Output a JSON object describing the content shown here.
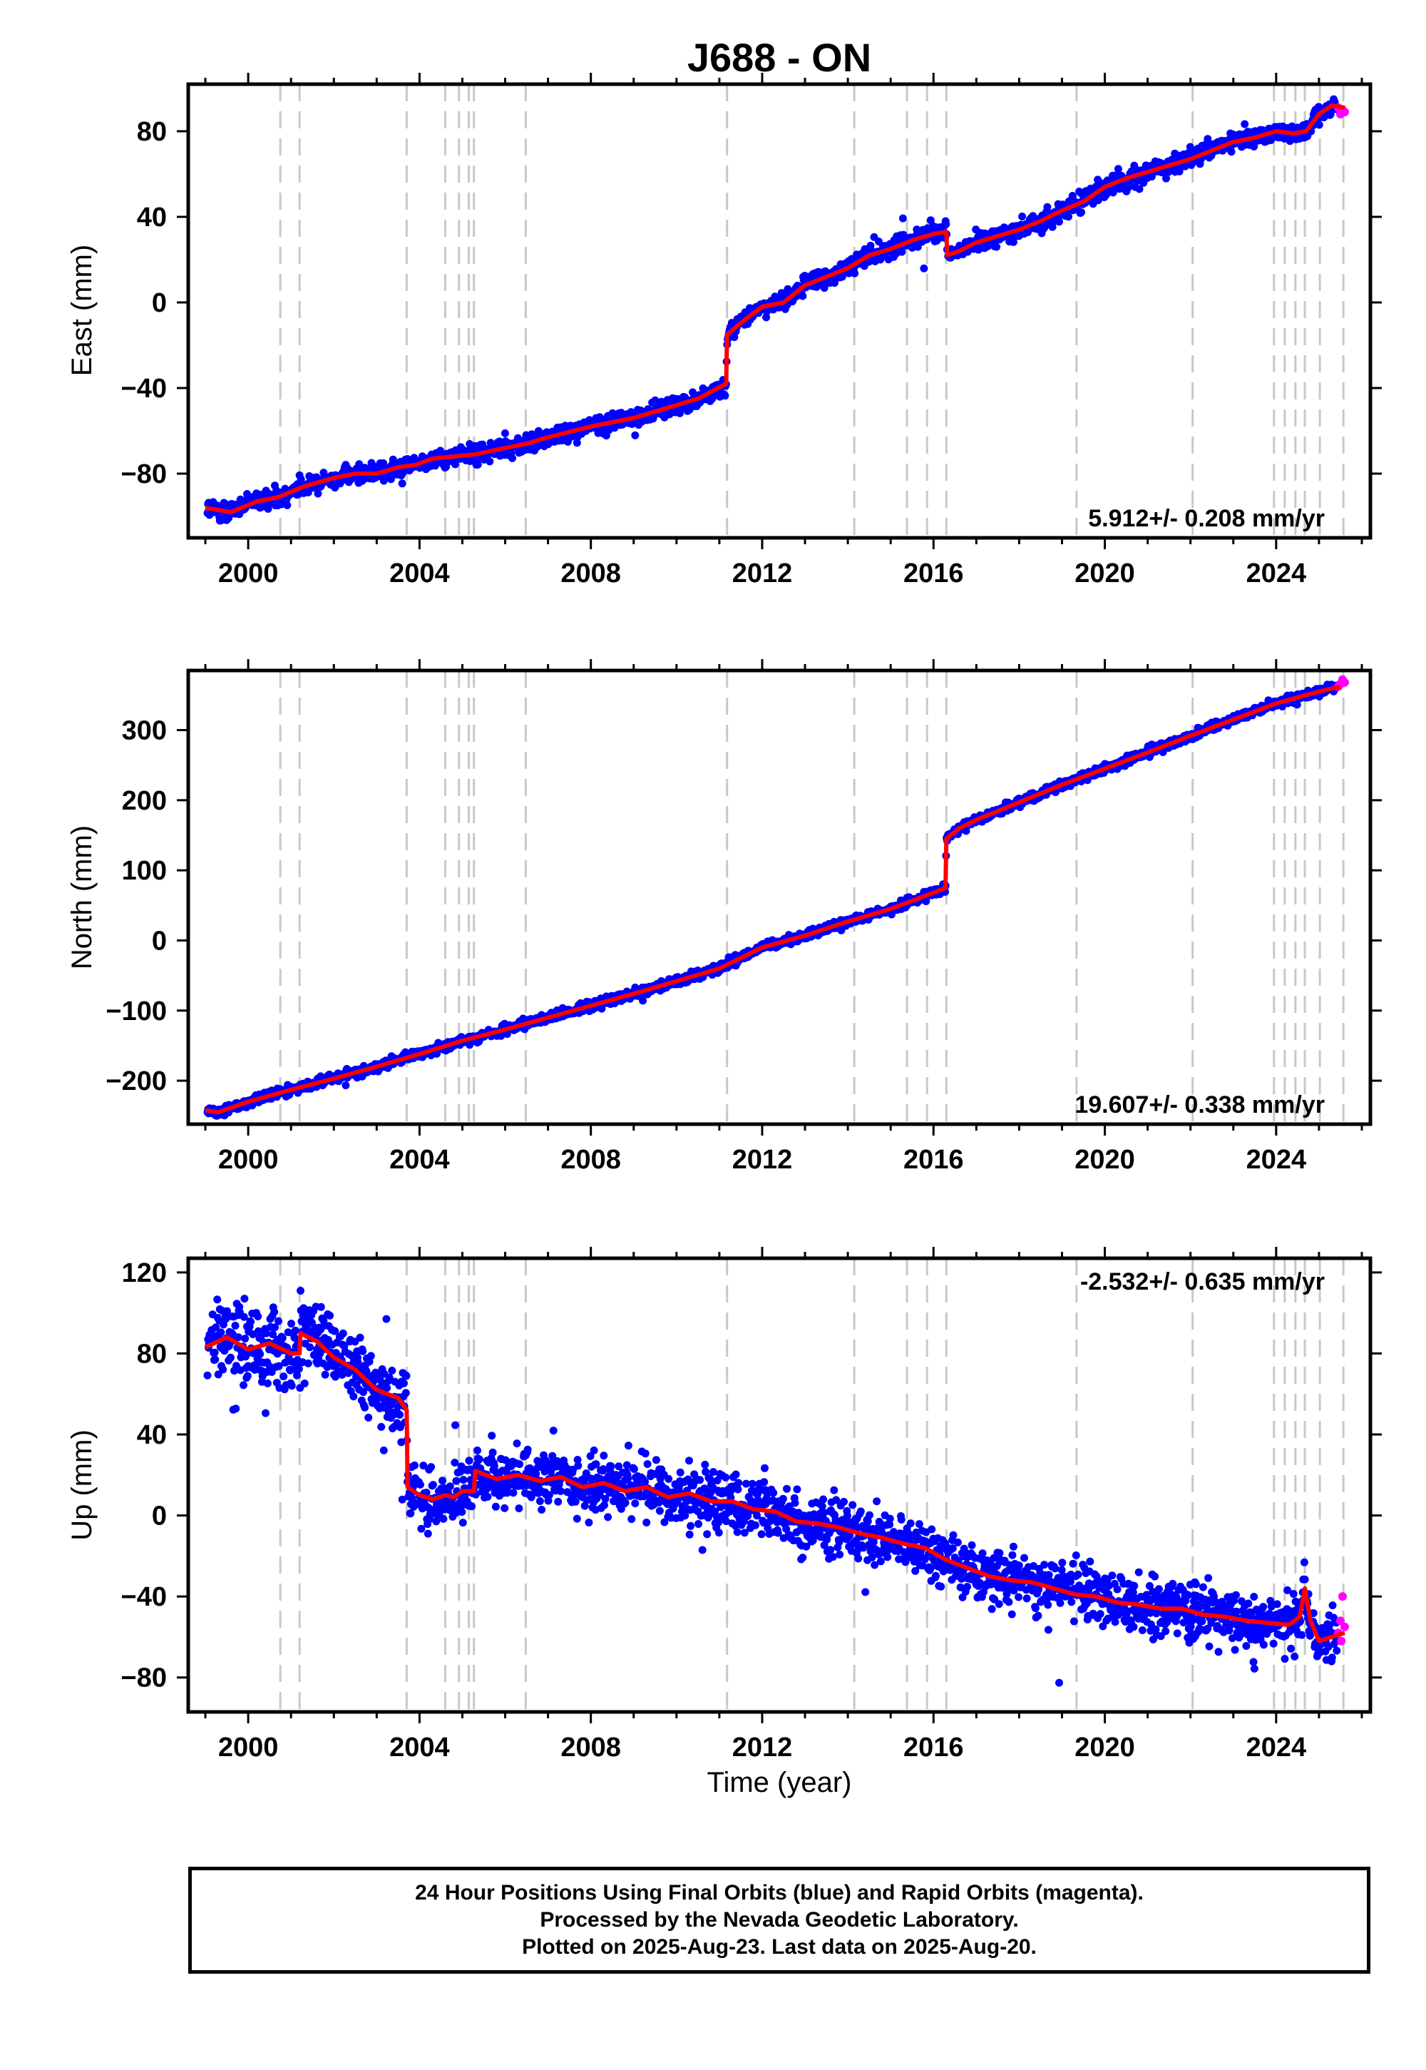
{
  "title": "J688 - ON",
  "xlabel": "Time (year)",
  "colors": {
    "final": "#0000ff",
    "rapid": "#ff00ff",
    "model": "#ff0000",
    "events": "#c8c8c8"
  },
  "event_years": [
    2000.75,
    2001.2,
    2003.7,
    2004.6,
    2004.92,
    2005.15,
    2005.27,
    2006.48,
    2011.18,
    2014.15,
    2015.38,
    2015.85,
    2016.3,
    2019.34,
    2022.05,
    2023.95,
    2024.2,
    2024.45,
    2024.67,
    2025.02,
    2025.57
  ],
  "chart_data": [
    {
      "type": "scatter",
      "name": "east",
      "ylabel": "East (mm)",
      "xlim": [
        1998.6,
        2026.2
      ],
      "ylim": [
        -110,
        102
      ],
      "xticks": [
        2000,
        2004,
        2008,
        2012,
        2016,
        2020,
        2024
      ],
      "yticks": [
        -80,
        -40,
        0,
        40,
        80
      ],
      "annotation": "5.912+/- 0.208 mm/yr",
      "model_line": [
        [
          1999.0,
          -96
        ],
        [
          1999.6,
          -98
        ],
        [
          2000.2,
          -93
        ],
        [
          2000.7,
          -91
        ],
        [
          2001.3,
          -86
        ],
        [
          2002.0,
          -82
        ],
        [
          2002.5,
          -80
        ],
        [
          2003.0,
          -80
        ],
        [
          2003.5,
          -77
        ],
        [
          2003.9,
          -76
        ],
        [
          2004.3,
          -73
        ],
        [
          2004.8,
          -72
        ],
        [
          2005.3,
          -71
        ],
        [
          2006.0,
          -68
        ],
        [
          2006.5,
          -66
        ],
        [
          2007.0,
          -63
        ],
        [
          2008.0,
          -58
        ],
        [
          2009.0,
          -54
        ],
        [
          2010.0,
          -48
        ],
        [
          2010.5,
          -45
        ],
        [
          2011.16,
          -38
        ],
        [
          2011.18,
          -15
        ],
        [
          2011.6,
          -8
        ],
        [
          2012.0,
          -2
        ],
        [
          2012.5,
          0
        ],
        [
          2013.0,
          8
        ],
        [
          2013.5,
          12
        ],
        [
          2014.0,
          16
        ],
        [
          2014.5,
          22
        ],
        [
          2015.0,
          25
        ],
        [
          2015.5,
          29
        ],
        [
          2016.0,
          32
        ],
        [
          2016.3,
          33
        ],
        [
          2016.32,
          22
        ],
        [
          2016.6,
          24
        ],
        [
          2017.0,
          28
        ],
        [
          2017.5,
          31
        ],
        [
          2018.0,
          34
        ],
        [
          2018.5,
          38
        ],
        [
          2019.0,
          43
        ],
        [
          2019.5,
          47
        ],
        [
          2020.0,
          54
        ],
        [
          2020.5,
          58
        ],
        [
          2021.0,
          61
        ],
        [
          2021.5,
          64
        ],
        [
          2022.0,
          67
        ],
        [
          2022.5,
          71
        ],
        [
          2023.0,
          75
        ],
        [
          2023.5,
          77
        ],
        [
          2024.0,
          80
        ],
        [
          2024.4,
          79
        ],
        [
          2024.7,
          80
        ],
        [
          2025.0,
          88
        ],
        [
          2025.3,
          92
        ],
        [
          2025.6,
          91
        ]
      ],
      "rapid_points": [
        [
          2025.45,
          91
        ],
        [
          2025.5,
          88
        ],
        [
          2025.55,
          90
        ],
        [
          2025.6,
          89
        ]
      ]
    },
    {
      "type": "scatter",
      "name": "north",
      "ylabel": "North (mm)",
      "xlim": [
        1998.6,
        2026.2
      ],
      "ylim": [
        -262,
        385
      ],
      "xticks": [
        2000,
        2004,
        2008,
        2012,
        2016,
        2020,
        2024
      ],
      "yticks": [
        -200,
        -100,
        0,
        100,
        200,
        300
      ],
      "annotation": "19.607+/- 0.338 mm/yr",
      "model_line": [
        [
          1999.0,
          -242
        ],
        [
          1999.3,
          -245
        ],
        [
          2000.0,
          -230
        ],
        [
          2001.0,
          -213
        ],
        [
          2002.0,
          -197
        ],
        [
          2003.0,
          -180
        ],
        [
          2004.0,
          -162
        ],
        [
          2005.0,
          -143
        ],
        [
          2006.0,
          -127
        ],
        [
          2007.0,
          -110
        ],
        [
          2008.0,
          -93
        ],
        [
          2009.0,
          -76
        ],
        [
          2010.0,
          -58
        ],
        [
          2011.0,
          -40
        ],
        [
          2012.0,
          -10
        ],
        [
          2013.0,
          7
        ],
        [
          2014.0,
          27
        ],
        [
          2015.0,
          45
        ],
        [
          2016.0,
          68
        ],
        [
          2016.28,
          75
        ],
        [
          2016.3,
          145
        ],
        [
          2016.6,
          160
        ],
        [
          2017.0,
          172
        ],
        [
          2018.0,
          197
        ],
        [
          2019.0,
          222
        ],
        [
          2020.0,
          245
        ],
        [
          2021.0,
          268
        ],
        [
          2022.0,
          292
        ],
        [
          2023.0,
          315
        ],
        [
          2024.0,
          338
        ],
        [
          2025.0,
          355
        ],
        [
          2025.5,
          362
        ]
      ],
      "rapid_points": [
        [
          2025.45,
          362
        ],
        [
          2025.5,
          366
        ],
        [
          2025.55,
          372
        ],
        [
          2025.6,
          368
        ]
      ]
    },
    {
      "type": "scatter",
      "name": "up",
      "ylabel": "Up (mm)",
      "xlim": [
        1998.6,
        2026.2
      ],
      "ylim": [
        -97,
        127
      ],
      "xticks": [
        2000,
        2004,
        2008,
        2012,
        2016,
        2020,
        2024
      ],
      "yticks": [
        -80,
        -40,
        0,
        40,
        80,
        120
      ],
      "annotation": "-2.532+/- 0.635 mm/yr",
      "model_line": [
        [
          1999.0,
          83
        ],
        [
          1999.5,
          88
        ],
        [
          2000.0,
          82
        ],
        [
          2000.5,
          85
        ],
        [
          2001.0,
          80
        ],
        [
          2001.2,
          80
        ],
        [
          2001.22,
          90
        ],
        [
          2001.6,
          86
        ],
        [
          2002.0,
          78
        ],
        [
          2002.5,
          72
        ],
        [
          2003.0,
          62
        ],
        [
          2003.5,
          58
        ],
        [
          2003.7,
          52
        ],
        [
          2003.72,
          14
        ],
        [
          2004.0,
          10
        ],
        [
          2004.3,
          8
        ],
        [
          2004.6,
          10
        ],
        [
          2004.8,
          9
        ],
        [
          2005.0,
          12
        ],
        [
          2005.27,
          12
        ],
        [
          2005.3,
          22
        ],
        [
          2005.8,
          18
        ],
        [
          2006.3,
          20
        ],
        [
          2006.8,
          17
        ],
        [
          2007.3,
          19
        ],
        [
          2007.8,
          14
        ],
        [
          2008.3,
          16
        ],
        [
          2008.8,
          12
        ],
        [
          2009.3,
          14
        ],
        [
          2009.8,
          9
        ],
        [
          2010.3,
          11
        ],
        [
          2010.8,
          7
        ],
        [
          2011.3,
          7
        ],
        [
          2011.8,
          3
        ],
        [
          2012.3,
          2
        ],
        [
          2012.8,
          -3
        ],
        [
          2013.3,
          -4
        ],
        [
          2013.8,
          -6
        ],
        [
          2014.3,
          -9
        ],
        [
          2014.8,
          -11
        ],
        [
          2015.3,
          -14
        ],
        [
          2015.8,
          -16
        ],
        [
          2016.3,
          -22
        ],
        [
          2016.8,
          -26
        ],
        [
          2017.3,
          -30
        ],
        [
          2017.8,
          -32
        ],
        [
          2018.3,
          -33
        ],
        [
          2018.8,
          -36
        ],
        [
          2019.3,
          -39
        ],
        [
          2019.8,
          -40
        ],
        [
          2020.3,
          -43
        ],
        [
          2020.8,
          -44
        ],
        [
          2021.3,
          -46
        ],
        [
          2021.8,
          -46
        ],
        [
          2022.3,
          -49
        ],
        [
          2022.8,
          -50
        ],
        [
          2023.3,
          -52
        ],
        [
          2023.8,
          -53
        ],
        [
          2024.3,
          -54
        ],
        [
          2024.55,
          -50
        ],
        [
          2024.67,
          -36
        ],
        [
          2024.8,
          -52
        ],
        [
          2025.0,
          -62
        ],
        [
          2025.3,
          -60
        ],
        [
          2025.6,
          -58
        ]
      ],
      "rapid_points": [
        [
          2025.45,
          -58
        ],
        [
          2025.5,
          -52
        ],
        [
          2025.52,
          -62
        ],
        [
          2025.55,
          -40
        ],
        [
          2025.6,
          -55
        ]
      ]
    }
  ],
  "footer": {
    "line1": "24 Hour Positions Using Final Orbits (blue) and Rapid Orbits (magenta).",
    "line2": "Processed by the Nevada Geodetic Laboratory.",
    "line3": "Plotted on 2025-Aug-23. Last data on 2025-Aug-20."
  }
}
